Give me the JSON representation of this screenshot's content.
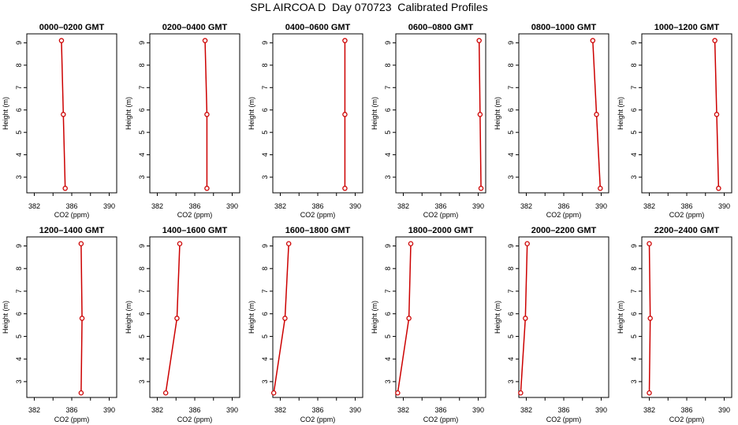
{
  "title": "SPL AIRCOA D  Day 070723  Calibrated Profiles",
  "panel_layout": {
    "rows": 2,
    "cols": 6
  },
  "colors": {
    "line": "#cc0000",
    "frame": "#000000"
  },
  "chart_data": [
    {
      "type": "line",
      "title": "0000–0200 GMT",
      "xlabel": "CO2 (ppm)",
      "ylabel": "Height (m)",
      "xlim": [
        381.2,
        390.8
      ],
      "ylim": [
        2.3,
        9.4
      ],
      "xticks": [
        382,
        386,
        390
      ],
      "xtick_labels": [
        "382",
        "386",
        "390"
      ],
      "yticks": [
        3,
        4,
        5,
        6,
        7,
        8,
        9
      ],
      "ytick_labels": [
        "3",
        "4",
        "5",
        "6",
        "7",
        "8",
        "9"
      ],
      "grid": false,
      "series": [
        {
          "x": [
            385.3,
            385.1,
            384.9
          ],
          "y": [
            2.5,
            5.8,
            9.1
          ]
        }
      ]
    },
    {
      "type": "line",
      "title": "0200–0400 GMT",
      "xlabel": "CO2 (ppm)",
      "ylabel": "Height (m)",
      "xlim": [
        381.2,
        390.8
      ],
      "ylim": [
        2.3,
        9.4
      ],
      "xticks": [
        382,
        386,
        390
      ],
      "xtick_labels": [
        "382",
        "386",
        "390"
      ],
      "yticks": [
        3,
        4,
        5,
        6,
        7,
        8,
        9
      ],
      "ytick_labels": [
        "3",
        "4",
        "5",
        "6",
        "7",
        "8",
        "9"
      ],
      "grid": false,
      "series": [
        {
          "x": [
            387.3,
            387.3,
            387.1
          ],
          "y": [
            2.5,
            5.8,
            9.1
          ]
        }
      ]
    },
    {
      "type": "line",
      "title": "0400–0600 GMT",
      "xlabel": "CO2 (ppm)",
      "ylabel": "Height (m)",
      "xlim": [
        381.2,
        390.8
      ],
      "ylim": [
        2.3,
        9.4
      ],
      "xticks": [
        382,
        386,
        390
      ],
      "xtick_labels": [
        "382",
        "386",
        "390"
      ],
      "yticks": [
        3,
        4,
        5,
        6,
        7,
        8,
        9
      ],
      "ytick_labels": [
        "3",
        "4",
        "5",
        "6",
        "7",
        "8",
        "9"
      ],
      "grid": false,
      "series": [
        {
          "x": [
            388.9,
            388.9,
            388.9
          ],
          "y": [
            2.5,
            5.8,
            9.1
          ]
        }
      ]
    },
    {
      "type": "line",
      "title": "0600–0800 GMT",
      "xlabel": "CO2 (ppm)",
      "ylabel": "Height (m)",
      "xlim": [
        381.2,
        390.8
      ],
      "ylim": [
        2.3,
        9.4
      ],
      "xticks": [
        382,
        386,
        390
      ],
      "xtick_labels": [
        "382",
        "386",
        "390"
      ],
      "yticks": [
        3,
        4,
        5,
        6,
        7,
        8,
        9
      ],
      "ytick_labels": [
        "3",
        "4",
        "5",
        "6",
        "7",
        "8",
        "9"
      ],
      "grid": false,
      "series": [
        {
          "x": [
            390.3,
            390.2,
            390.1
          ],
          "y": [
            2.5,
            5.8,
            9.1
          ]
        }
      ]
    },
    {
      "type": "line",
      "title": "0800–1000 GMT",
      "xlabel": "CO2 (ppm)",
      "ylabel": "Height (m)",
      "xlim": [
        381.2,
        390.8
      ],
      "ylim": [
        2.3,
        9.4
      ],
      "xticks": [
        382,
        386,
        390
      ],
      "xtick_labels": [
        "382",
        "386",
        "390"
      ],
      "yticks": [
        3,
        4,
        5,
        6,
        7,
        8,
        9
      ],
      "ytick_labels": [
        "3",
        "4",
        "5",
        "6",
        "7",
        "8",
        "9"
      ],
      "grid": false,
      "series": [
        {
          "x": [
            389.9,
            389.5,
            389.1
          ],
          "y": [
            2.5,
            5.8,
            9.1
          ]
        }
      ]
    },
    {
      "type": "line",
      "title": "1000–1200 GMT",
      "xlabel": "CO2 (ppm)",
      "ylabel": "Height (m)",
      "xlim": [
        381.2,
        390.8
      ],
      "ylim": [
        2.3,
        9.4
      ],
      "xticks": [
        382,
        386,
        390
      ],
      "xtick_labels": [
        "382",
        "386",
        "390"
      ],
      "yticks": [
        3,
        4,
        5,
        6,
        7,
        8,
        9
      ],
      "ytick_labels": [
        "3",
        "4",
        "5",
        "6",
        "7",
        "8",
        "9"
      ],
      "grid": false,
      "series": [
        {
          "x": [
            389.4,
            389.2,
            389.0
          ],
          "y": [
            2.5,
            5.8,
            9.1
          ]
        }
      ]
    },
    {
      "type": "line",
      "title": "1200–1400 GMT",
      "xlabel": "CO2 (ppm)",
      "ylabel": "Height (m)",
      "xlim": [
        381.2,
        390.8
      ],
      "ylim": [
        2.3,
        9.4
      ],
      "xticks": [
        382,
        386,
        390
      ],
      "xtick_labels": [
        "382",
        "386",
        "390"
      ],
      "yticks": [
        3,
        4,
        5,
        6,
        7,
        8,
        9
      ],
      "ytick_labels": [
        "3",
        "4",
        "5",
        "6",
        "7",
        "8",
        "9"
      ],
      "grid": false,
      "series": [
        {
          "x": [
            387.0,
            387.1,
            387.0
          ],
          "y": [
            2.5,
            5.8,
            9.1
          ]
        }
      ]
    },
    {
      "type": "line",
      "title": "1400–1600 GMT",
      "xlabel": "CO2 (ppm)",
      "ylabel": "Height (m)",
      "xlim": [
        381.2,
        390.8
      ],
      "ylim": [
        2.3,
        9.4
      ],
      "xticks": [
        382,
        386,
        390
      ],
      "xtick_labels": [
        "382",
        "386",
        "390"
      ],
      "yticks": [
        3,
        4,
        5,
        6,
        7,
        8,
        9
      ],
      "ytick_labels": [
        "3",
        "4",
        "5",
        "6",
        "7",
        "8",
        "9"
      ],
      "grid": false,
      "series": [
        {
          "x": [
            382.9,
            384.1,
            384.4
          ],
          "y": [
            2.5,
            5.8,
            9.1
          ]
        }
      ]
    },
    {
      "type": "line",
      "title": "1600–1800 GMT",
      "xlabel": "CO2 (ppm)",
      "ylabel": "Height (m)",
      "xlim": [
        381.2,
        390.8
      ],
      "ylim": [
        2.3,
        9.4
      ],
      "xticks": [
        382,
        386,
        390
      ],
      "xtick_labels": [
        "382",
        "386",
        "390"
      ],
      "yticks": [
        3,
        4,
        5,
        6,
        7,
        8,
        9
      ],
      "ytick_labels": [
        "3",
        "4",
        "5",
        "6",
        "7",
        "8",
        "9"
      ],
      "grid": false,
      "series": [
        {
          "x": [
            381.3,
            382.5,
            382.9
          ],
          "y": [
            2.5,
            5.8,
            9.1
          ]
        }
      ]
    },
    {
      "type": "line",
      "title": "1800–2000 GMT",
      "xlabel": "CO2 (ppm)",
      "ylabel": "Height (m)",
      "xlim": [
        381.2,
        390.8
      ],
      "ylim": [
        2.3,
        9.4
      ],
      "xticks": [
        382,
        386,
        390
      ],
      "xtick_labels": [
        "382",
        "386",
        "390"
      ],
      "yticks": [
        3,
        4,
        5,
        6,
        7,
        8,
        9
      ],
      "ytick_labels": [
        "3",
        "4",
        "5",
        "6",
        "7",
        "8",
        "9"
      ],
      "grid": false,
      "series": [
        {
          "x": [
            381.4,
            382.6,
            382.8
          ],
          "y": [
            2.5,
            5.8,
            9.1
          ]
        }
      ]
    },
    {
      "type": "line",
      "title": "2000–2200 GMT",
      "xlabel": "CO2 (ppm)",
      "ylabel": "Height (m)",
      "xlim": [
        381.2,
        390.8
      ],
      "ylim": [
        2.3,
        9.4
      ],
      "xticks": [
        382,
        386,
        390
      ],
      "xtick_labels": [
        "382",
        "386",
        "390"
      ],
      "yticks": [
        3,
        4,
        5,
        6,
        7,
        8,
        9
      ],
      "ytick_labels": [
        "3",
        "4",
        "5",
        "6",
        "7",
        "8",
        "9"
      ],
      "grid": false,
      "series": [
        {
          "x": [
            381.4,
            381.9,
            382.1
          ],
          "y": [
            2.5,
            5.8,
            9.1
          ]
        }
      ]
    },
    {
      "type": "line",
      "title": "2200–2400 GMT",
      "xlabel": "CO2 (ppm)",
      "ylabel": "Height (m)",
      "xlim": [
        381.2,
        390.8
      ],
      "ylim": [
        2.3,
        9.4
      ],
      "xticks": [
        382,
        386,
        390
      ],
      "xtick_labels": [
        "382",
        "386",
        "390"
      ],
      "yticks": [
        3,
        4,
        5,
        6,
        7,
        8,
        9
      ],
      "ytick_labels": [
        "3",
        "4",
        "5",
        "6",
        "7",
        "8",
        "9"
      ],
      "grid": false,
      "series": [
        {
          "x": [
            382.0,
            382.1,
            382.0
          ],
          "y": [
            2.5,
            5.8,
            9.1
          ]
        }
      ]
    }
  ]
}
